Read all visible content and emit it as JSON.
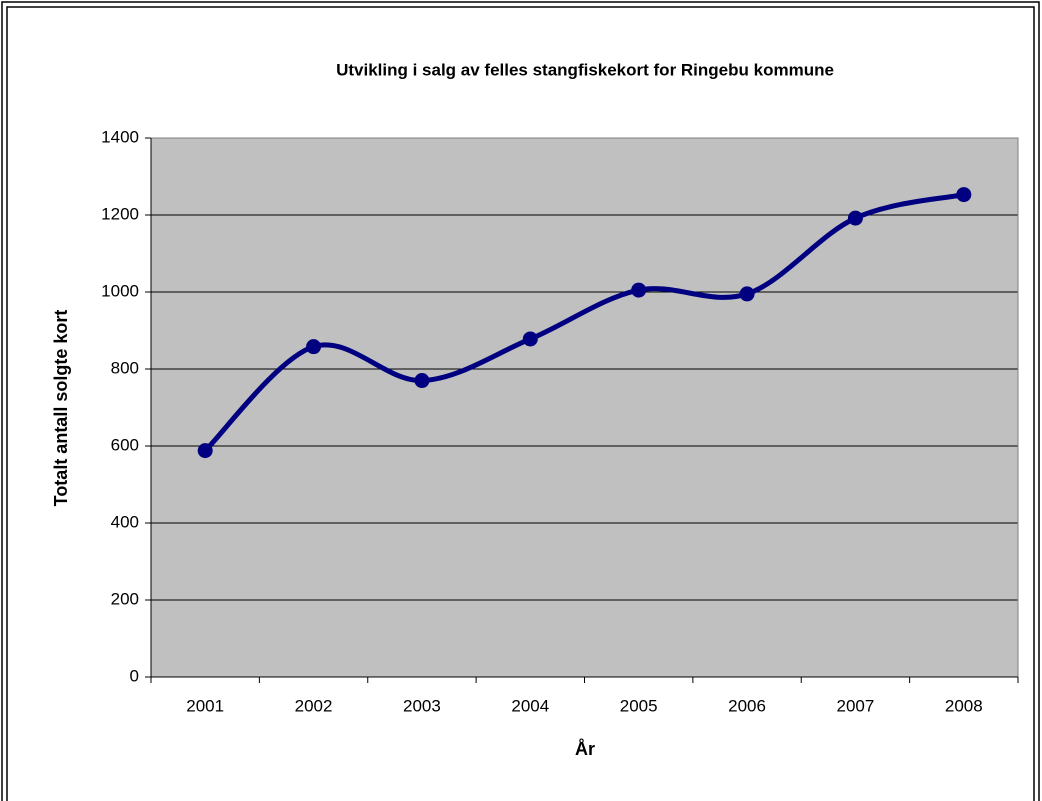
{
  "chart_data": {
    "type": "line",
    "title": "Utvikling i salg av felles stangfiskekort for Ringebu kommune",
    "x_label": "År",
    "y_label": "Totalt antall solgte kort",
    "categories": [
      "2001",
      "2002",
      "2003",
      "2004",
      "2005",
      "2006",
      "2007",
      "2008"
    ],
    "values": [
      588,
      858,
      770,
      878,
      1005,
      995,
      1192,
      1253
    ],
    "color": "#000080",
    "smooth": true,
    "grid": true,
    "ylim": [
      0,
      1400
    ],
    "yticks": [
      0,
      200,
      400,
      600,
      800,
      1000,
      1200,
      1400
    ]
  }
}
